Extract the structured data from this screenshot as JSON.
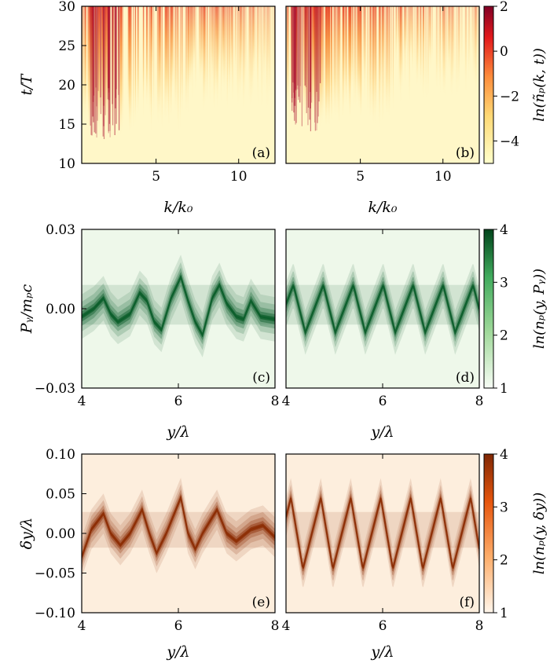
{
  "colors": {
    "heat_low": "#fff7c8",
    "heat_mid": "#f5a14a",
    "heat_high": "#a50026",
    "green_bg": "#eef8ea",
    "green_dark": "#0b5e2a",
    "orange_bg": "#fdeedd",
    "orange_dark": "#8c2d04"
  },
  "chart_data": [
    {
      "id": "a",
      "panel_label": "(a)",
      "type": "heatmap",
      "xlabel": "k/k₀",
      "ylabel": "t/T",
      "xlim": [
        0.5,
        12.2
      ],
      "ylim": [
        10,
        30
      ],
      "xticks": [
        5,
        10
      ],
      "yticks": [
        10,
        15,
        20,
        25,
        30
      ],
      "x_tick_labels": [
        "5",
        "10"
      ],
      "y_tick_labels": [
        "10",
        "15",
        "20",
        "25",
        "30"
      ],
      "colormap": "YlOrRd",
      "onset_time": 13,
      "peak_k": 1.8
    },
    {
      "id": "b",
      "panel_label": "(b)",
      "type": "heatmap",
      "xlabel": "k/k₀",
      "xlim": [
        0.5,
        12.2
      ],
      "ylim": [
        10,
        30
      ],
      "xticks": [
        5,
        10
      ],
      "x_tick_labels": [
        "5",
        "10"
      ],
      "colormap": "YlOrRd",
      "onset_time": 14,
      "peak_k": 1.6,
      "colorbar": {
        "label": "ln(ñₚ(k, t))",
        "range": [
          -5,
          2
        ],
        "ticks": [
          2,
          0,
          -2,
          -4
        ],
        "tick_labels": [
          "2",
          "0",
          "−2",
          "−4"
        ]
      }
    },
    {
      "id": "c",
      "panel_label": "(c)",
      "type": "heatmap",
      "xlabel": "y/λ",
      "ylabel": "Pᵧ/mₚc",
      "xlim": [
        4,
        8
      ],
      "ylim": [
        -0.03,
        0.03
      ],
      "xticks": [
        4,
        6,
        8
      ],
      "yticks": [
        0.03,
        0.0,
        -0.03
      ],
      "x_tick_labels": [
        "4",
        "6",
        "8"
      ],
      "y_tick_labels": [
        "0.03",
        "0.00",
        "−0.03"
      ],
      "colormap": "Greens",
      "centerline": [
        [
          4.0,
          -0.003
        ],
        [
          4.25,
          0.0
        ],
        [
          4.45,
          0.004
        ],
        [
          4.6,
          -0.002
        ],
        [
          4.75,
          -0.005
        ],
        [
          5.0,
          -0.002
        ],
        [
          5.2,
          0.006
        ],
        [
          5.35,
          0.003
        ],
        [
          5.5,
          -0.005
        ],
        [
          5.65,
          -0.008
        ],
        [
          5.85,
          0.004
        ],
        [
          6.05,
          0.012
        ],
        [
          6.2,
          0.003
        ],
        [
          6.35,
          -0.005
        ],
        [
          6.5,
          -0.01
        ],
        [
          6.7,
          0.004
        ],
        [
          6.85,
          0.009
        ],
        [
          7.0,
          0.002
        ],
        [
          7.2,
          -0.003
        ],
        [
          7.35,
          -0.004
        ],
        [
          7.5,
          0.003
        ],
        [
          7.7,
          -0.003
        ],
        [
          8.0,
          -0.004
        ]
      ]
    },
    {
      "id": "d",
      "panel_label": "(d)",
      "type": "heatmap",
      "xlabel": "y/λ",
      "xlim": [
        4,
        8
      ],
      "ylim": [
        -0.03,
        0.03
      ],
      "xticks": [
        4,
        6,
        8
      ],
      "x_tick_labels": [
        "4",
        "6",
        "8"
      ],
      "colormap": "Greens",
      "wave_amplitude": 0.009,
      "wave_period": 0.62,
      "wave_phase": 4.4,
      "colorbar": {
        "label": "ln(nₚ(y, Pᵧ))",
        "range": [
          1,
          4
        ],
        "ticks": [
          4,
          3,
          2,
          1
        ],
        "tick_labels": [
          "4",
          "3",
          "2",
          "1"
        ]
      }
    },
    {
      "id": "e",
      "panel_label": "(e)",
      "type": "heatmap",
      "xlabel": "y/λ",
      "ylabel": "δy/λ",
      "xlim": [
        4,
        8
      ],
      "ylim": [
        -0.1,
        0.1
      ],
      "xticks": [
        4,
        6,
        8
      ],
      "yticks": [
        0.1,
        0.05,
        0.0,
        -0.05,
        -0.1
      ],
      "x_tick_labels": [
        "4",
        "6",
        "8"
      ],
      "y_tick_labels": [
        "0.10",
        "0.05",
        "0.00",
        "−0.05",
        "−0.10"
      ],
      "colormap": "Oranges",
      "envelope": [
        [
          4.0,
          -0.03
        ],
        [
          4.2,
          0.005
        ],
        [
          4.45,
          0.025
        ],
        [
          4.6,
          0.0
        ],
        [
          4.8,
          -0.015
        ],
        [
          5.0,
          0.0
        ],
        [
          5.25,
          0.03
        ],
        [
          5.4,
          0.0
        ],
        [
          5.55,
          -0.025
        ],
        [
          5.75,
          0.0
        ],
        [
          6.05,
          0.045
        ],
        [
          6.2,
          0.0
        ],
        [
          6.35,
          -0.02
        ],
        [
          6.5,
          0.0
        ],
        [
          6.8,
          0.03
        ],
        [
          7.0,
          0.0
        ],
        [
          7.2,
          -0.01
        ],
        [
          7.5,
          0.005
        ],
        [
          7.75,
          0.01
        ],
        [
          8.0,
          -0.005
        ]
      ]
    },
    {
      "id": "f",
      "panel_label": "(f)",
      "type": "heatmap",
      "xlabel": "y/λ",
      "xlim": [
        4,
        8
      ],
      "ylim": [
        -0.1,
        0.1
      ],
      "xticks": [
        4,
        6,
        8
      ],
      "x_tick_labels": [
        "4",
        "6",
        "8"
      ],
      "colormap": "Oranges",
      "wave_amplitude": 0.045,
      "wave_period": 0.62,
      "wave_phase": 4.35,
      "colorbar": {
        "label": "ln(nₚ(y, δy))",
        "range": [
          1,
          4
        ],
        "ticks": [
          4,
          3,
          2,
          1
        ],
        "tick_labels": [
          "4",
          "3",
          "2",
          "1"
        ]
      }
    }
  ]
}
